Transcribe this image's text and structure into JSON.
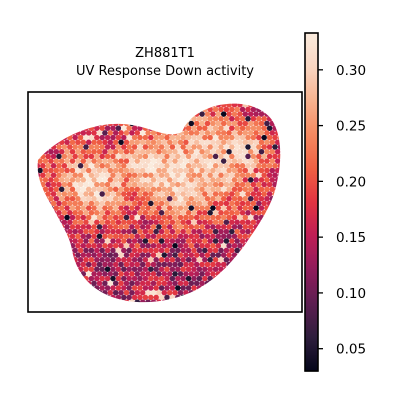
{
  "chart_data": {
    "type": "heatmap",
    "title": "ZH881T1",
    "subtitle": "UV Response Down activity",
    "xlabel": "",
    "ylabel": "",
    "grid": false,
    "legend": "colorbar-right",
    "colormap": "rocket",
    "color_range": [
      0.03,
      0.333
    ],
    "colorbar_ticks": [
      "0.05",
      "0.10",
      "0.15",
      "0.20",
      "0.25",
      "0.30"
    ],
    "colorbar_tick_values": [
      0.05,
      0.1,
      0.15,
      0.2,
      0.25,
      0.3
    ],
    "colormap_stops": [
      "#03051a",
      "#2e1e3d",
      "#5c1e51",
      "#8e1d5b",
      "#be1e56",
      "#e13342",
      "#f06043",
      "#f58960",
      "#f7b28e",
      "#f9d5c1",
      "#faebdd"
    ]
  }
}
